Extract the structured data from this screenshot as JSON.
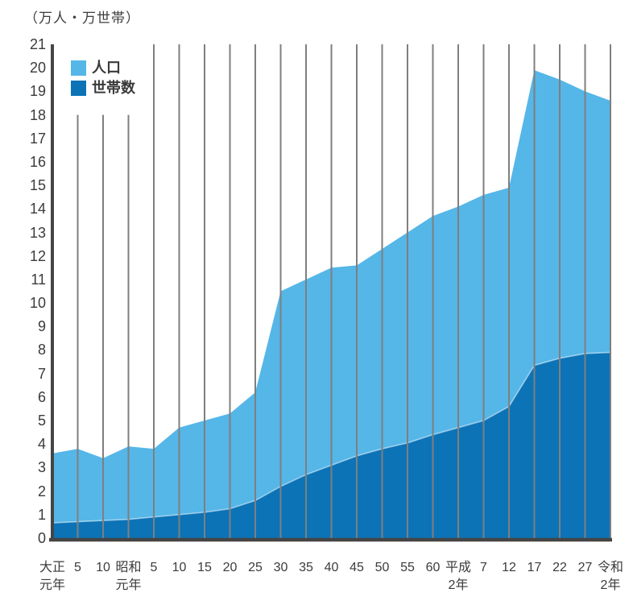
{
  "chart_data": {
    "type": "area",
    "title": "（万人・万世帯）",
    "xlabel": "",
    "ylabel": "（万人・万世帯）",
    "ylim": [
      0,
      21
    ],
    "ytick_step": 1,
    "grid": "vertical",
    "legend_position": "top-left",
    "categories": [
      [
        "大正",
        "元年"
      ],
      [
        "5"
      ],
      [
        "10"
      ],
      [
        "昭和",
        "元年"
      ],
      [
        "5"
      ],
      [
        "10"
      ],
      [
        "15"
      ],
      [
        "20"
      ],
      [
        "25"
      ],
      [
        "30"
      ],
      [
        "35"
      ],
      [
        "40"
      ],
      [
        "45"
      ],
      [
        "50"
      ],
      [
        "55"
      ],
      [
        "60"
      ],
      [
        "平成",
        "2年"
      ],
      [
        "7"
      ],
      [
        "12"
      ],
      [
        "17"
      ],
      [
        "22"
      ],
      [
        "27"
      ],
      [
        "令和",
        "2年"
      ]
    ],
    "series": [
      {
        "name": "人口",
        "color": "#55b6e8",
        "values": [
          3.6,
          3.8,
          3.4,
          3.9,
          3.8,
          4.7,
          5.0,
          5.3,
          6.2,
          10.5,
          11.0,
          11.5,
          11.6,
          12.3,
          13.0,
          13.7,
          14.1,
          14.6,
          14.9,
          19.9,
          19.5,
          19.0,
          18.6
        ]
      },
      {
        "name": "世帯数",
        "color": "#0c73b7",
        "values": [
          0.65,
          0.7,
          0.75,
          0.8,
          0.9,
          1.0,
          1.1,
          1.25,
          1.6,
          2.2,
          2.7,
          3.1,
          3.5,
          3.8,
          4.05,
          4.4,
          4.7,
          5.0,
          5.6,
          7.35,
          7.65,
          7.85,
          7.9
        ]
      }
    ],
    "colors": {
      "gridline": "#7f7f7f",
      "axis": "#454545",
      "text": "#3b3b3b",
      "background": "#ffffff"
    }
  }
}
